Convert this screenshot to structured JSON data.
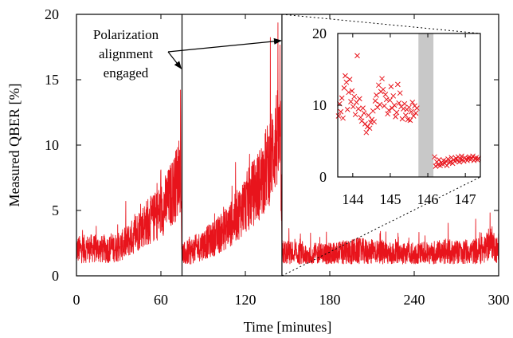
{
  "chart_data": [
    {
      "type": "line",
      "xlabel": "Time [minutes]",
      "ylabel": "Measured QBER [%]",
      "xlim": [
        0,
        300
      ],
      "ylim": [
        0,
        20
      ],
      "xticks": [
        0,
        60,
        120,
        180,
        240,
        300
      ],
      "yticks": [
        0,
        5,
        10,
        15,
        20
      ],
      "series": [
        {
          "color": "#e8141c",
          "profile": [
            [
              0,
              2.0
            ],
            [
              10,
              2.1
            ],
            [
              20,
              2.0
            ],
            [
              30,
              2.2
            ],
            [
              35,
              2.5
            ],
            [
              40,
              3.0
            ],
            [
              45,
              3.6
            ],
            [
              50,
              4.1
            ],
            [
              55,
              4.4
            ],
            [
              60,
              5.0
            ],
            [
              65,
              5.8
            ],
            [
              70,
              6.8
            ],
            [
              74,
              8.0
            ],
            [
              75,
              1.6
            ],
            [
              80,
              1.8
            ],
            [
              90,
              2.4
            ],
            [
              100,
              3.0
            ],
            [
              110,
              4.0
            ],
            [
              120,
              5.5
            ],
            [
              130,
              7.0
            ],
            [
              138,
              9.0
            ],
            [
              142,
              10.5
            ],
            [
              145,
              10.0
            ],
            [
              146,
              1.8
            ],
            [
              160,
              1.6
            ],
            [
              180,
              1.6
            ],
            [
              200,
              1.9
            ],
            [
              220,
              1.7
            ],
            [
              240,
              1.6
            ],
            [
              260,
              1.8
            ],
            [
              280,
              1.8
            ],
            [
              290,
              2.0
            ],
            [
              295,
              2.6
            ],
            [
              300,
              1.8
            ]
          ]
        }
      ],
      "vertical_lines": [
        75,
        146
      ],
      "annotation": {
        "lines": [
          "Polarization",
          "alignment",
          "engaged"
        ]
      }
    },
    {
      "type": "scatter",
      "xlim": [
        143.6,
        147.4
      ],
      "ylim": [
        0,
        20
      ],
      "xticks": [
        144,
        145,
        146,
        147
      ],
      "yticks": [
        0,
        10,
        20
      ],
      "shaded_region": [
        145.75,
        146.15
      ],
      "marker": "x",
      "color": "#e8141c",
      "points": [
        [
          143.62,
          8.5
        ],
        [
          143.65,
          10.2
        ],
        [
          143.68,
          9.1
        ],
        [
          143.71,
          11.0
        ],
        [
          143.74,
          8.2
        ],
        [
          143.77,
          12.4
        ],
        [
          143.8,
          14.1
        ],
        [
          143.83,
          13.2
        ],
        [
          143.86,
          9.4
        ],
        [
          143.89,
          11.8
        ],
        [
          143.92,
          13.6
        ],
        [
          143.95,
          10.5
        ],
        [
          143.98,
          12.0
        ],
        [
          144.01,
          9.8
        ],
        [
          144.04,
          11.2
        ],
        [
          144.07,
          8.7
        ],
        [
          144.1,
          10.4
        ],
        [
          144.12,
          16.9
        ],
        [
          144.15,
          9.5
        ],
        [
          144.18,
          10.9
        ],
        [
          144.21,
          8.3
        ],
        [
          144.24,
          7.8
        ],
        [
          144.27,
          9.6
        ],
        [
          144.3,
          8.9
        ],
        [
          144.33,
          7.4
        ],
        [
          144.36,
          6.2
        ],
        [
          144.39,
          7.0
        ],
        [
          144.42,
          8.6
        ],
        [
          144.45,
          6.8
        ],
        [
          144.48,
          7.6
        ],
        [
          144.51,
          8.0
        ],
        [
          144.54,
          9.2
        ],
        [
          144.57,
          7.7
        ],
        [
          144.6,
          10.6
        ],
        [
          144.63,
          11.4
        ],
        [
          144.66,
          9.7
        ],
        [
          144.69,
          12.8
        ],
        [
          144.72,
          10.1
        ],
        [
          144.75,
          11.9
        ],
        [
          144.78,
          13.7
        ],
        [
          144.81,
          12.2
        ],
        [
          144.84,
          9.9
        ],
        [
          144.87,
          11.5
        ],
        [
          144.9,
          10.8
        ],
        [
          144.93,
          8.8
        ],
        [
          144.96,
          9.3
        ],
        [
          144.99,
          10.7
        ],
        [
          145.02,
          12.6
        ],
        [
          145.05,
          9.6
        ],
        [
          145.08,
          11.3
        ],
        [
          145.11,
          10.0
        ],
        [
          145.14,
          8.4
        ],
        [
          145.17,
          9.0
        ],
        [
          145.2,
          12.9
        ],
        [
          145.23,
          10.3
        ],
        [
          145.26,
          11.7
        ],
        [
          145.29,
          9.8
        ],
        [
          145.32,
          8.1
        ],
        [
          145.35,
          9.5
        ],
        [
          145.38,
          10.2
        ],
        [
          145.41,
          8.6
        ],
        [
          145.44,
          9.4
        ],
        [
          145.47,
          8.0
        ],
        [
          145.5,
          9.7
        ],
        [
          145.53,
          7.9
        ],
        [
          145.56,
          9.1
        ],
        [
          145.59,
          10.4
        ],
        [
          145.62,
          8.5
        ],
        [
          145.65,
          9.9
        ],
        [
          145.68,
          8.9
        ],
        [
          145.71,
          9.6
        ],
        [
          146.18,
          2.8
        ],
        [
          146.21,
          1.5
        ],
        [
          146.24,
          2.1
        ],
        [
          146.27,
          1.7
        ],
        [
          146.3,
          2.4
        ],
        [
          146.33,
          1.6
        ],
        [
          146.36,
          2.0
        ],
        [
          146.39,
          1.8
        ],
        [
          146.42,
          2.3
        ],
        [
          146.45,
          1.9
        ],
        [
          146.48,
          2.2
        ],
        [
          146.51,
          1.6
        ],
        [
          146.54,
          2.5
        ],
        [
          146.57,
          2.0
        ],
        [
          146.6,
          2.1
        ],
        [
          146.63,
          2.7
        ],
        [
          146.66,
          1.9
        ],
        [
          146.69,
          2.4
        ],
        [
          146.72,
          2.2
        ],
        [
          146.75,
          2.6
        ],
        [
          146.78,
          2.3
        ],
        [
          146.81,
          2.8
        ],
        [
          146.84,
          2.1
        ],
        [
          146.87,
          2.5
        ],
        [
          146.9,
          2.9
        ],
        [
          146.93,
          2.4
        ],
        [
          146.96,
          2.2
        ],
        [
          146.99,
          2.7
        ],
        [
          147.02,
          2.5
        ],
        [
          147.05,
          2.3
        ],
        [
          147.08,
          2.6
        ],
        [
          147.11,
          2.8
        ],
        [
          147.14,
          2.4
        ],
        [
          147.17,
          2.6
        ],
        [
          147.2,
          2.9
        ],
        [
          147.23,
          2.3
        ],
        [
          147.26,
          2.5
        ],
        [
          147.29,
          2.7
        ],
        [
          147.32,
          2.4
        ],
        [
          147.35,
          2.6
        ]
      ]
    }
  ]
}
